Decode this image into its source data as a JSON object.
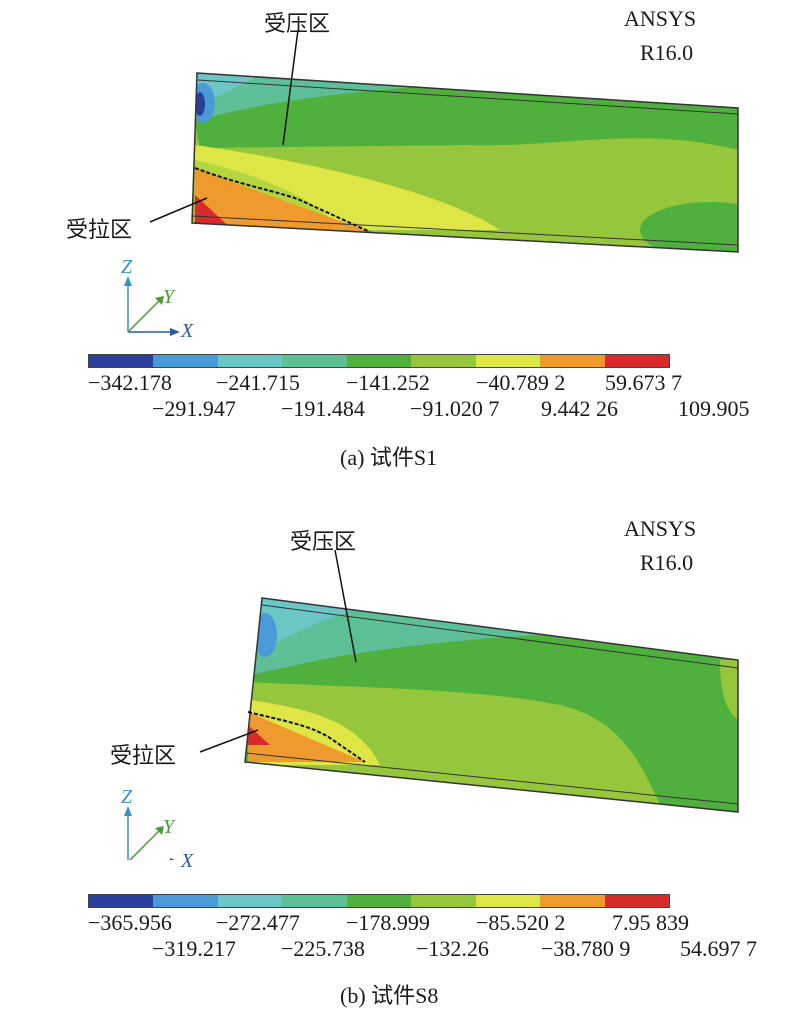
{
  "panels": [
    {
      "software": "ANSYS",
      "version": "R16.0",
      "compression_label": "受压区",
      "tension_label": "受拉区",
      "axes": {
        "z": "Z",
        "y": "Y",
        "x": "X"
      },
      "legend_top": [
        "−342.178",
        "−241.715",
        "−141.252",
        "−40.789 2",
        "59.673 7"
      ],
      "legend_bottom": [
        "−291.947",
        "−191.484",
        "−91.020 7",
        "9.442 26",
        "109.905"
      ],
      "caption": "(a) 试件S1"
    },
    {
      "software": "ANSYS",
      "version": "R16.0",
      "compression_label": "受压区",
      "tension_label": "受拉区",
      "axes": {
        "z": "Z",
        "y": "Y",
        "x": "X"
      },
      "legend_top": [
        "−365.956",
        "−272.477",
        "−178.999",
        "−85.520 2",
        "7.95 839"
      ],
      "legend_bottom": [
        "−319.217",
        "−225.738",
        "−132.26",
        "−38.780 9",
        "54.697 7"
      ],
      "caption": "(b) 试件S8"
    }
  ],
  "colormap": [
    "#2a3f9c",
    "#4a9ad8",
    "#6cc6c6",
    "#5dbf96",
    "#4fb03e",
    "#96c63c",
    "#dde645",
    "#ee9a2c",
    "#d92a2a"
  ]
}
